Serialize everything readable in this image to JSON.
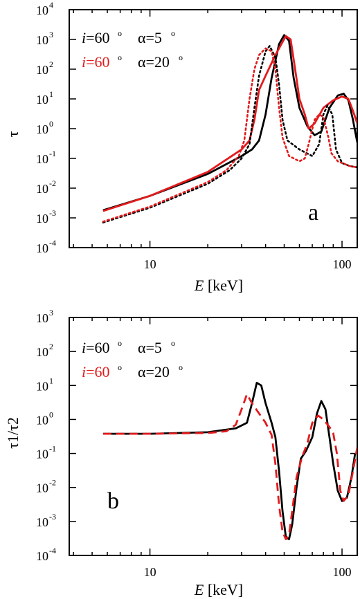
{
  "chart_data": [
    {
      "panel": "a",
      "type": "line",
      "xscale": "log",
      "yscale": "log",
      "xlim": [
        3.8,
        120
      ],
      "ylim": [
        0.0001,
        10000
      ],
      "xlabel_italic": "E",
      "xlabel_unit": " [keV]",
      "ylabel": "τ",
      "xticklabels": [
        "10",
        "100"
      ],
      "yticklabels": [
        {
          "base": "10",
          "exp": "4"
        },
        {
          "base": "10",
          "exp": "3"
        },
        {
          "base": "10",
          "exp": "2"
        },
        {
          "base": "10",
          "exp": "1"
        },
        {
          "base": "10",
          "exp": "0"
        },
        {
          "base": "10",
          "exp": "-1"
        },
        {
          "base": "10",
          "exp": "-2"
        },
        {
          "base": "10",
          "exp": "-3"
        },
        {
          "base": "10",
          "exp": "-4"
        }
      ],
      "legend": [
        {
          "i_var": "i",
          "i_val": "=60",
          "i_sup": "o",
          "alpha_label": "α=5",
          "alpha_sup": "o",
          "color": "#000000"
        },
        {
          "i_var": "i",
          "i_val": "=60",
          "i_sup": "o",
          "alpha_label": "α=20",
          "alpha_sup": "o",
          "color": "#e31a1c"
        }
      ],
      "series": [
        {
          "color": "#000000",
          "style": "solid",
          "points": [
            [
              5.7,
              0.0018
            ],
            [
              10,
              0.0055
            ],
            [
              20,
              0.03
            ],
            [
              30,
              0.12
            ],
            [
              34,
              0.2
            ],
            [
              37,
              0.4
            ],
            [
              40,
              3
            ],
            [
              43,
              50
            ],
            [
              47,
              700
            ],
            [
              50,
              1400
            ],
            [
              53,
              900
            ],
            [
              56,
              50
            ],
            [
              60,
              5
            ],
            [
              66,
              1.2
            ],
            [
              72,
              0.6
            ],
            [
              78,
              0.8
            ],
            [
              86,
              5
            ],
            [
              95,
              13
            ],
            [
              102,
              15
            ],
            [
              108,
              9
            ],
            [
              114,
              2
            ],
            [
              120,
              0.35
            ]
          ]
        },
        {
          "color": "#e31a1c",
          "style": "solid",
          "points": [
            [
              5.7,
              0.0017
            ],
            [
              10,
              0.0055
            ],
            [
              20,
              0.035
            ],
            [
              30,
              0.2
            ],
            [
              33,
              0.4
            ],
            [
              35,
              2
            ],
            [
              37,
              20
            ],
            [
              40,
              60
            ],
            [
              45,
              300
            ],
            [
              51,
              1300
            ],
            [
              54,
              1000
            ],
            [
              57,
              100
            ],
            [
              60,
              10
            ],
            [
              64,
              3
            ],
            [
              67,
              1
            ],
            [
              72,
              1.5
            ],
            [
              80,
              5
            ],
            [
              90,
              9
            ],
            [
              100,
              12
            ],
            [
              108,
              10
            ],
            [
              114,
              4
            ],
            [
              120,
              1.5
            ]
          ]
        },
        {
          "color": "#000000",
          "style": "dotted",
          "points": [
            [
              5.7,
              0.0007
            ],
            [
              10,
              0.0022
            ],
            [
              20,
              0.014
            ],
            [
              26,
              0.04
            ],
            [
              30,
              0.1
            ],
            [
              33,
              0.3
            ],
            [
              35,
              5
            ],
            [
              37,
              60
            ],
            [
              40,
              400
            ],
            [
              42,
              600
            ],
            [
              45,
              250
            ],
            [
              47,
              30
            ],
            [
              49,
              2
            ],
            [
              52,
              0.4
            ],
            [
              60,
              0.2
            ],
            [
              70,
              0.12
            ],
            [
              76,
              0.3
            ],
            [
              80,
              3
            ],
            [
              84,
              6
            ],
            [
              89,
              3
            ],
            [
              93,
              0.2
            ],
            [
              100,
              0.07
            ],
            [
              110,
              0.055
            ],
            [
              120,
              0.05
            ]
          ]
        },
        {
          "color": "#e31a1c",
          "style": "dotted",
          "points": [
            [
              5.7,
              0.00075
            ],
            [
              10,
              0.0024
            ],
            [
              20,
              0.016
            ],
            [
              25,
              0.04
            ],
            [
              29,
              0.12
            ],
            [
              31,
              0.4
            ],
            [
              33,
              10
            ],
            [
              35,
              100
            ],
            [
              37,
              300
            ],
            [
              40,
              500
            ],
            [
              43,
              400
            ],
            [
              45,
              100
            ],
            [
              47,
              5
            ],
            [
              49,
              0.5
            ],
            [
              53,
              0.12
            ],
            [
              60,
              0.08
            ],
            [
              64,
              0.1
            ],
            [
              67,
              0.3
            ],
            [
              72,
              2
            ],
            [
              76,
              3
            ],
            [
              80,
              2.5
            ],
            [
              85,
              0.5
            ],
            [
              88,
              0.15
            ],
            [
              95,
              0.08
            ],
            [
              110,
              0.055
            ],
            [
              120,
              0.05
            ]
          ]
        }
      ]
    },
    {
      "panel": "b",
      "type": "line",
      "xscale": "log",
      "yscale": "log",
      "xlim": [
        3.8,
        120
      ],
      "ylim": [
        0.0001,
        1000
      ],
      "xlabel_italic": "E",
      "xlabel_unit": " [keV]",
      "ylabel": "τ1/τ2",
      "xticklabels": [
        "10",
        "100"
      ],
      "yticklabels": [
        {
          "base": "10",
          "exp": "3"
        },
        {
          "base": "10",
          "exp": "2"
        },
        {
          "base": "10",
          "exp": "1"
        },
        {
          "base": "10",
          "exp": "0"
        },
        {
          "base": "10",
          "exp": "-1"
        },
        {
          "base": "10",
          "exp": "-2"
        },
        {
          "base": "10",
          "exp": "-3"
        },
        {
          "base": "10",
          "exp": "-4"
        }
      ],
      "legend": [
        {
          "i_var": "i",
          "i_val": "=60",
          "i_sup": "o",
          "alpha_label": "α=5",
          "alpha_sup": "o",
          "color": "#000000"
        },
        {
          "i_var": "i",
          "i_val": "=60",
          "i_sup": "o",
          "alpha_label": "α=20",
          "alpha_sup": "o",
          "color": "#e31a1c"
        }
      ],
      "series": [
        {
          "color": "#000000",
          "style": "solid",
          "points": [
            [
              5.7,
              0.38
            ],
            [
              10,
              0.38
            ],
            [
              20,
              0.42
            ],
            [
              28,
              0.55
            ],
            [
              32,
              0.8
            ],
            [
              34,
              3
            ],
            [
              36,
              12
            ],
            [
              38,
              10
            ],
            [
              40,
              3
            ],
            [
              43,
              0.8
            ],
            [
              45,
              0.3
            ],
            [
              47,
              0.03
            ],
            [
              49,
              0.002
            ],
            [
              51,
              0.00035
            ],
            [
              53,
              0.0003
            ],
            [
              55,
              0.0008
            ],
            [
              58,
              0.01
            ],
            [
              61,
              0.07
            ],
            [
              65,
              0.12
            ],
            [
              70,
              0.3
            ],
            [
              74,
              1.5
            ],
            [
              78,
              3.5
            ],
            [
              82,
              2
            ],
            [
              86,
              0.3
            ],
            [
              90,
              0.05
            ],
            [
              95,
              0.008
            ],
            [
              100,
              0.004
            ],
            [
              106,
              0.005
            ],
            [
              112,
              0.02
            ],
            [
              117,
              0.1
            ]
          ]
        },
        {
          "color": "#e31a1c",
          "style": "dashed",
          "points": [
            [
              5.7,
              0.38
            ],
            [
              10,
              0.38
            ],
            [
              20,
              0.4
            ],
            [
              25,
              0.45
            ],
            [
              28,
              0.7
            ],
            [
              30,
              2
            ],
            [
              32,
              5.5
            ],
            [
              34,
              3
            ],
            [
              37,
              1.5
            ],
            [
              40,
              0.8
            ],
            [
              43,
              0.35
            ],
            [
              45,
              0.05
            ],
            [
              47,
              0.003
            ],
            [
              49,
              0.0005
            ],
            [
              51,
              0.0003
            ],
            [
              53,
              0.0004
            ],
            [
              55,
              0.002
            ],
            [
              58,
              0.02
            ],
            [
              62,
              0.08
            ],
            [
              66,
              0.2
            ],
            [
              70,
              0.8
            ],
            [
              75,
              1.3
            ],
            [
              80,
              1
            ],
            [
              86,
              0.6
            ],
            [
              90,
              0.4
            ],
            [
              94,
              0.1
            ],
            [
              98,
              0.008
            ],
            [
              102,
              0.004
            ],
            [
              108,
              0.006
            ],
            [
              114,
              0.03
            ],
            [
              120,
              0.15
            ]
          ]
        }
      ]
    }
  ]
}
